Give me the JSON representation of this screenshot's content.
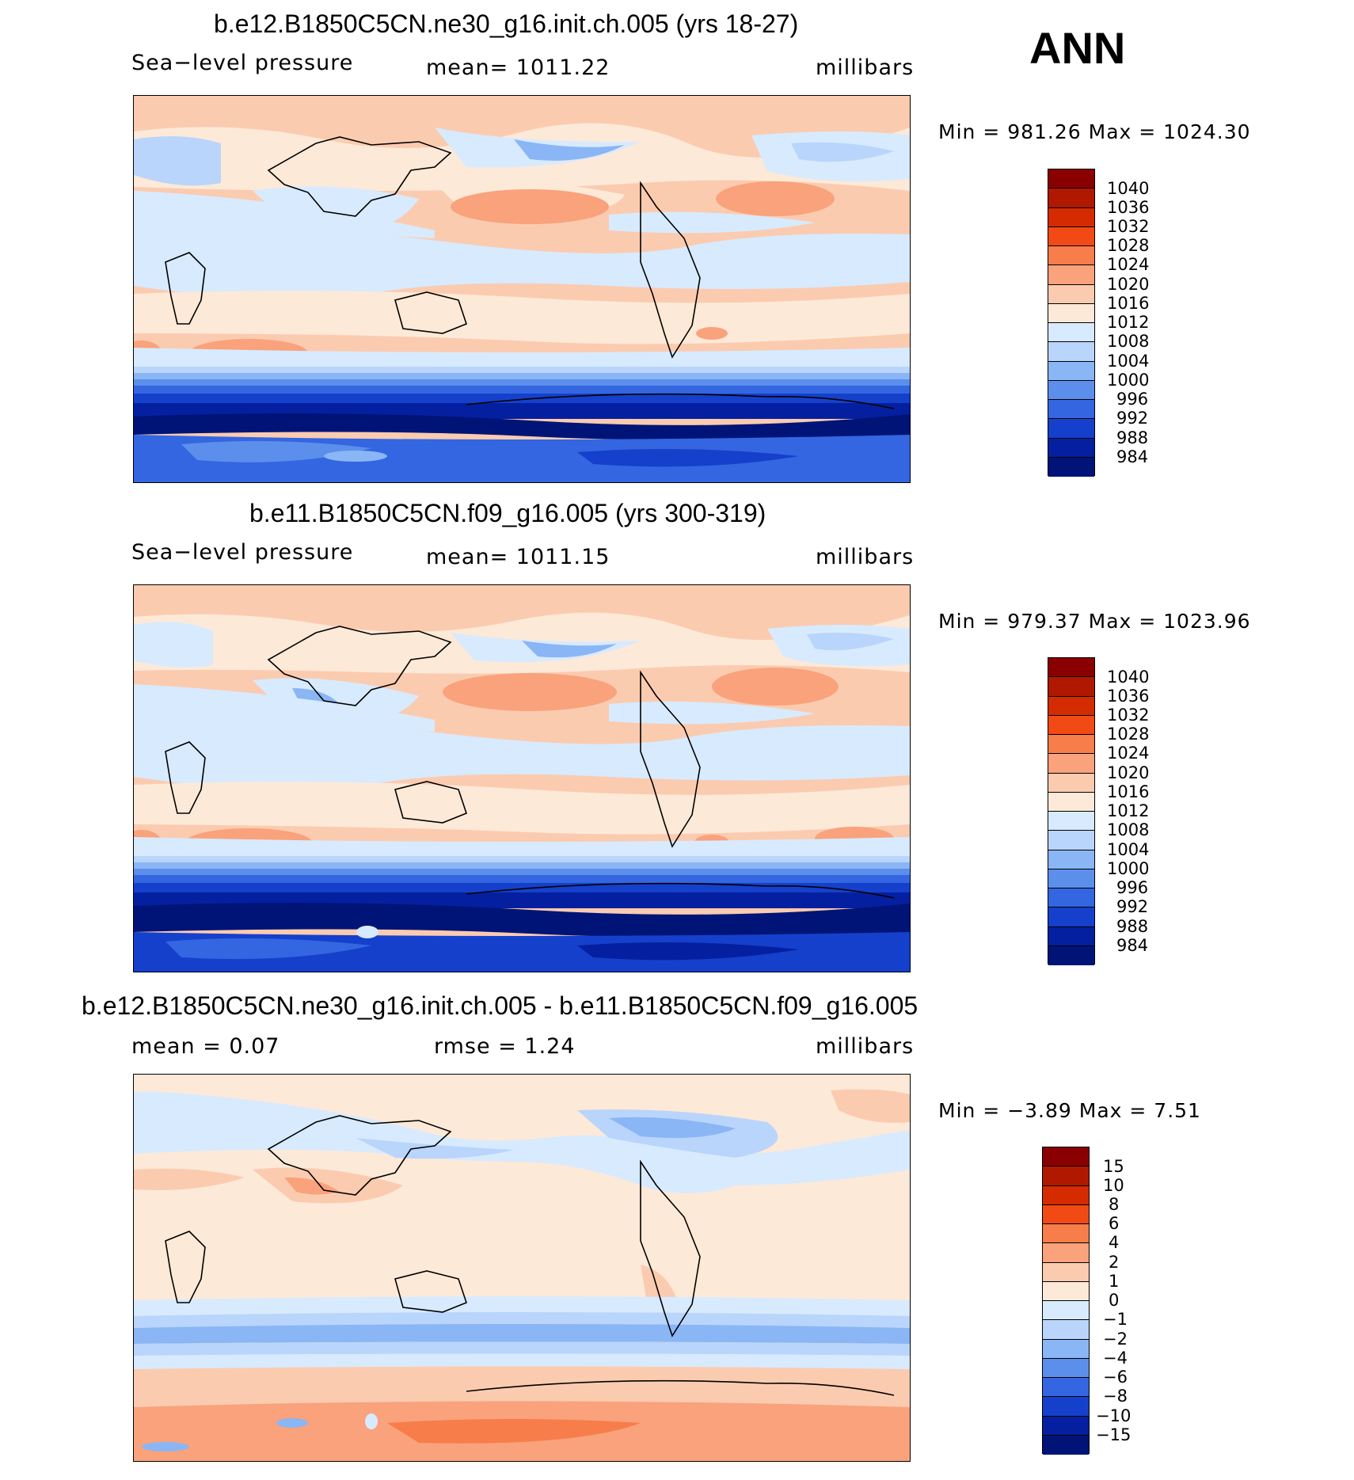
{
  "season": "ANN",
  "panels": [
    {
      "title": "b.e12.B1850C5CN.ne30_g16.init.ch.005 (yrs 18-27)",
      "left_label": "Sea−level pressure",
      "center_label": "mean=  1011.22",
      "right_label": "millibars",
      "minmax": "Min  =  981.26  Max  =  1024.30",
      "levels": [
        "1040",
        "1036",
        "1032",
        "1028",
        "1024",
        "1020",
        "1016",
        "1012",
        "1008",
        "1004",
        "1000",
        "996",
        "992",
        "988",
        "984"
      ],
      "colors": [
        "#8a0000",
        "#b01800",
        "#d42c00",
        "#f24a14",
        "#f77d4b",
        "#f9a27c",
        "#fbcbb0",
        "#fde9d8",
        "#d8eafe",
        "#b9d5fb",
        "#8ab6f5",
        "#5c8fec",
        "#3366e0",
        "#1540cc",
        "#0420a0",
        "#001477"
      ]
    },
    {
      "title": "b.e11.B1850C5CN.f09_g16.005 (yrs 300-319)",
      "left_label": "Sea−level pressure",
      "center_label": "mean=  1011.15",
      "right_label": "millibars",
      "minmax": "Min  =  979.37  Max  =  1023.96",
      "levels": [
        "1040",
        "1036",
        "1032",
        "1028",
        "1024",
        "1020",
        "1016",
        "1012",
        "1008",
        "1004",
        "1000",
        "996",
        "992",
        "988",
        "984"
      ],
      "colors": [
        "#8a0000",
        "#b01800",
        "#d42c00",
        "#f24a14",
        "#f77d4b",
        "#f9a27c",
        "#fbcbb0",
        "#fde9d8",
        "#d8eafe",
        "#b9d5fb",
        "#8ab6f5",
        "#5c8fec",
        "#3366e0",
        "#1540cc",
        "#0420a0",
        "#001477"
      ]
    },
    {
      "title": "b.e12.B1850C5CN.ne30_g16.init.ch.005 - b.e11.B1850C5CN.f09_g16.005",
      "left_label": "mean  =     0.07",
      "center_label": "rmse  =     1.24",
      "right_label": "millibars",
      "minmax": "Min  =    −3.89  Max  =      7.51",
      "levels": [
        "15",
        "10",
        "8",
        "6",
        "4",
        "2",
        "1",
        "0",
        "−1",
        "−2",
        "−4",
        "−6",
        "−8",
        "−10",
        "−15"
      ],
      "colors": [
        "#8a0000",
        "#b01800",
        "#d42c00",
        "#f24a14",
        "#f77d4b",
        "#f9a27c",
        "#fbcbb0",
        "#fde9d8",
        "#d8eafe",
        "#b9d5fb",
        "#8ab6f5",
        "#5c8fec",
        "#3366e0",
        "#1540cc",
        "#0420a0",
        "#001477"
      ]
    }
  ]
}
